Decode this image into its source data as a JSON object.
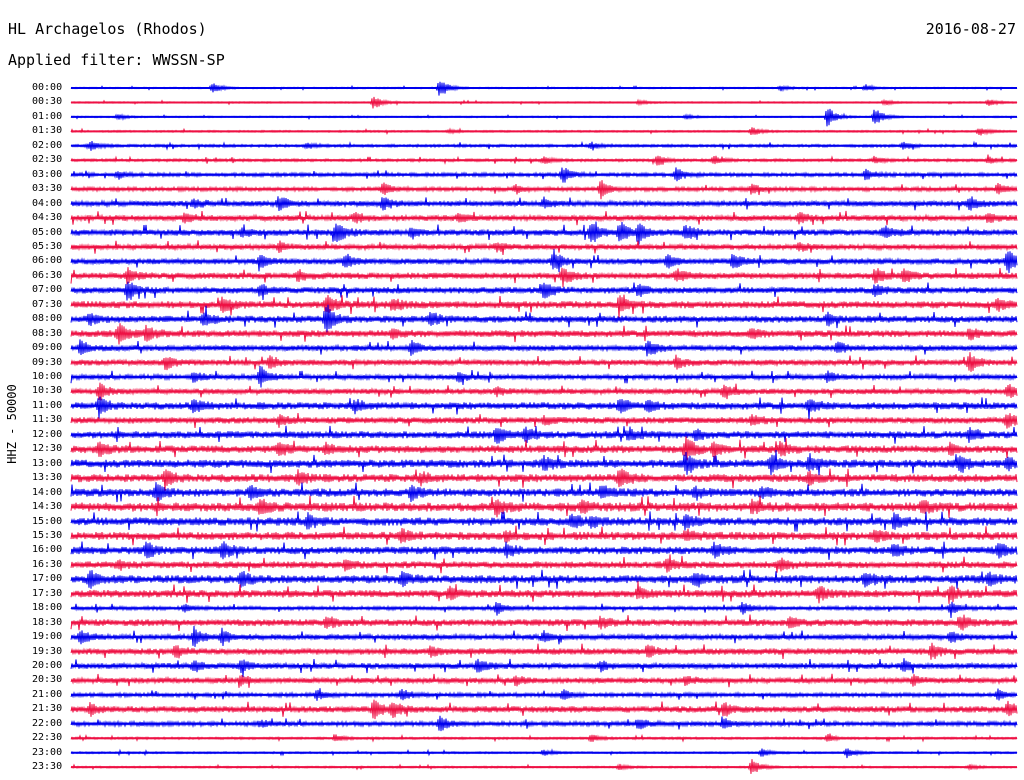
{
  "header": {
    "station": "HL Archagelos (Rhodos)",
    "date": "2016-08-27",
    "filter_label": "Applied filter: WWSSN-SP"
  },
  "vertical_label": "HHZ - 50000",
  "colors": {
    "trace_even": "#0000ee",
    "trace_odd": "#ee1144",
    "background": "#ffffff",
    "text": "#000000"
  },
  "chart_data": {
    "type": "line",
    "row_labels": [
      "00:00",
      "00:30",
      "01:00",
      "01:30",
      "02:00",
      "02:30",
      "03:00",
      "03:30",
      "04:00",
      "04:30",
      "05:00",
      "05:30",
      "06:00",
      "06:30",
      "07:00",
      "07:30",
      "08:00",
      "08:30",
      "09:00",
      "09:30",
      "10:00",
      "10:30",
      "11:00",
      "11:30",
      "12:00",
      "12:30",
      "13:00",
      "13:30",
      "14:00",
      "14:30",
      "15:00",
      "15:30",
      "16:00",
      "16:30",
      "17:00",
      "17:30",
      "18:00",
      "18:30",
      "19:00",
      "19:30",
      "20:00",
      "20:30",
      "21:00",
      "21:30",
      "22:00",
      "22:30",
      "23:00",
      "23:30"
    ],
    "noise_level": [
      0.08,
      0.08,
      0.08,
      0.1,
      0.15,
      0.15,
      0.2,
      0.22,
      0.3,
      0.32,
      0.35,
      0.3,
      0.32,
      0.35,
      0.35,
      0.4,
      0.38,
      0.38,
      0.32,
      0.32,
      0.28,
      0.3,
      0.4,
      0.35,
      0.4,
      0.42,
      0.45,
      0.45,
      0.45,
      0.5,
      0.45,
      0.45,
      0.42,
      0.38,
      0.45,
      0.42,
      0.2,
      0.38,
      0.3,
      0.35,
      0.32,
      0.3,
      0.22,
      0.35,
      0.25,
      0.12,
      0.1,
      0.1
    ],
    "events": [
      [
        [
          0.15,
          0.6
        ],
        [
          0.39,
          1.2
        ],
        [
          0.75,
          0.3
        ],
        [
          0.84,
          0.35
        ]
      ],
      [
        [
          0.32,
          0.8
        ],
        [
          0.6,
          0.25
        ],
        [
          0.86,
          0.3
        ],
        [
          0.97,
          0.4
        ]
      ],
      [
        [
          0.8,
          1.3
        ],
        [
          0.85,
          1.1
        ],
        [
          0.05,
          0.3
        ],
        [
          0.65,
          0.25
        ]
      ],
      [
        [
          0.72,
          0.5
        ],
        [
          0.96,
          0.5
        ],
        [
          0.4,
          0.2
        ]
      ],
      [
        [
          0.02,
          0.6
        ],
        [
          0.25,
          0.3
        ],
        [
          0.55,
          0.4
        ],
        [
          0.88,
          0.4
        ]
      ],
      [
        [
          0.5,
          0.4
        ],
        [
          0.62,
          0.6
        ],
        [
          0.68,
          0.5
        ],
        [
          0.85,
          0.4
        ],
        [
          0.97,
          0.4
        ]
      ],
      [
        [
          0.52,
          1.0
        ],
        [
          0.64,
          0.8
        ],
        [
          0.05,
          0.4
        ],
        [
          0.84,
          0.6
        ]
      ],
      [
        [
          0.33,
          0.7
        ],
        [
          0.56,
          1.0
        ],
        [
          0.47,
          0.5
        ],
        [
          0.72,
          0.6
        ],
        [
          0.98,
          0.6
        ]
      ],
      [
        [
          0.22,
          0.9
        ],
        [
          0.33,
          0.7
        ],
        [
          0.13,
          0.6
        ],
        [
          0.5,
          0.6
        ],
        [
          0.95,
          0.8
        ]
      ],
      [
        [
          0.3,
          0.6
        ],
        [
          0.12,
          0.5
        ],
        [
          0.41,
          0.5
        ],
        [
          0.77,
          0.6
        ],
        [
          0.97,
          0.5
        ]
      ],
      [
        [
          0.28,
          1.5
        ],
        [
          0.55,
          1.3
        ],
        [
          0.58,
          1.2
        ],
        [
          0.6,
          1.1
        ],
        [
          0.65,
          0.9
        ],
        [
          0.36,
          0.6
        ],
        [
          0.18,
          0.5
        ],
        [
          0.86,
          0.7
        ]
      ],
      [
        [
          0.22,
          0.5
        ],
        [
          0.45,
          0.5
        ],
        [
          0.77,
          0.4
        ]
      ],
      [
        [
          0.2,
          0.6
        ],
        [
          0.29,
          0.8
        ],
        [
          0.51,
          1.2
        ],
        [
          0.63,
          0.7
        ],
        [
          0.99,
          1.5
        ],
        [
          0.7,
          0.9
        ]
      ],
      [
        [
          0.06,
          0.8
        ],
        [
          0.24,
          0.7
        ],
        [
          0.52,
          1.1
        ],
        [
          0.64,
          0.7
        ],
        [
          0.85,
          0.9
        ],
        [
          0.88,
          0.7
        ]
      ],
      [
        [
          0.06,
          1.3
        ],
        [
          0.2,
          0.6
        ],
        [
          0.5,
          1.1
        ],
        [
          0.6,
          0.6
        ],
        [
          0.85,
          0.7
        ]
      ],
      [
        [
          0.16,
          0.9
        ],
        [
          0.27,
          1.0
        ],
        [
          0.34,
          0.7
        ],
        [
          0.58,
          0.8
        ],
        [
          0.98,
          0.6
        ]
      ],
      [
        [
          0.14,
          0.9
        ],
        [
          0.27,
          1.6
        ],
        [
          0.38,
          0.8
        ],
        [
          0.02,
          0.6
        ],
        [
          0.8,
          0.6
        ]
      ],
      [
        [
          0.05,
          1.1
        ],
        [
          0.08,
          0.8
        ],
        [
          0.34,
          0.5
        ],
        [
          0.72,
          0.6
        ],
        [
          0.95,
          0.6
        ]
      ],
      [
        [
          0.01,
          0.8
        ],
        [
          0.36,
          0.7
        ],
        [
          0.61,
          1.0
        ],
        [
          0.81,
          0.6
        ]
      ],
      [
        [
          0.1,
          0.8
        ],
        [
          0.21,
          0.7
        ],
        [
          0.64,
          0.7
        ],
        [
          0.95,
          1.0
        ]
      ],
      [
        [
          0.2,
          1.2
        ],
        [
          0.13,
          0.6
        ],
        [
          0.41,
          0.5
        ],
        [
          0.8,
          0.6
        ]
      ],
      [
        [
          0.03,
          0.9
        ],
        [
          0.69,
          0.9
        ],
        [
          0.99,
          0.8
        ],
        [
          0.45,
          0.5
        ]
      ],
      [
        [
          0.03,
          0.9
        ],
        [
          0.13,
          0.8
        ],
        [
          0.3,
          0.7
        ],
        [
          0.58,
          0.8
        ],
        [
          0.61,
          0.6
        ],
        [
          0.78,
          0.8
        ]
      ],
      [
        [
          0.22,
          0.6
        ],
        [
          0.5,
          0.4
        ],
        [
          0.72,
          0.7
        ],
        [
          0.99,
          0.9
        ]
      ],
      [
        [
          0.45,
          0.9
        ],
        [
          0.48,
          0.8
        ],
        [
          0.59,
          0.7
        ],
        [
          0.66,
          0.6
        ],
        [
          0.95,
          0.7
        ]
      ],
      [
        [
          0.03,
          0.8
        ],
        [
          0.22,
          0.7
        ],
        [
          0.27,
          0.6
        ],
        [
          0.65,
          1.3
        ],
        [
          0.68,
          0.9
        ],
        [
          0.75,
          0.7
        ],
        [
          0.93,
          0.6
        ]
      ],
      [
        [
          0.5,
          0.8
        ],
        [
          0.65,
          1.2
        ],
        [
          0.74,
          1.0
        ],
        [
          0.78,
          0.9
        ],
        [
          0.94,
          0.9
        ],
        [
          0.99,
          0.6
        ]
      ],
      [
        [
          0.1,
          0.8
        ],
        [
          0.24,
          0.7
        ],
        [
          0.37,
          0.6
        ],
        [
          0.58,
          1.2
        ],
        [
          0.78,
          0.7
        ]
      ],
      [
        [
          0.09,
          0.8
        ],
        [
          0.19,
          0.7
        ],
        [
          0.36,
          0.8
        ],
        [
          0.56,
          0.7
        ],
        [
          0.66,
          0.6
        ],
        [
          0.73,
          0.6
        ]
      ],
      [
        [
          0.2,
          0.7
        ],
        [
          0.45,
          0.9
        ],
        [
          0.54,
          0.6
        ],
        [
          0.72,
          0.7
        ],
        [
          0.9,
          0.7
        ]
      ],
      [
        [
          0.25,
          0.9
        ],
        [
          0.53,
          0.8
        ],
        [
          0.55,
          0.6
        ],
        [
          0.65,
          0.7
        ],
        [
          0.87,
          0.8
        ]
      ],
      [
        [
          0.35,
          0.7
        ],
        [
          0.46,
          0.5
        ],
        [
          0.65,
          0.6
        ],
        [
          0.85,
          0.6
        ]
      ],
      [
        [
          0.08,
          0.9
        ],
        [
          0.16,
          0.9
        ],
        [
          0.46,
          0.8
        ],
        [
          0.68,
          0.8
        ],
        [
          0.87,
          0.7
        ],
        [
          0.98,
          0.8
        ]
      ],
      [
        [
          0.05,
          0.5
        ],
        [
          0.29,
          0.6
        ],
        [
          0.63,
          0.7
        ],
        [
          0.75,
          0.6
        ]
      ],
      [
        [
          0.02,
          1.0
        ],
        [
          0.18,
          0.9
        ],
        [
          0.35,
          0.8
        ],
        [
          0.66,
          0.8
        ],
        [
          0.84,
          0.8
        ],
        [
          0.97,
          0.7
        ]
      ],
      [
        [
          0.4,
          0.6
        ],
        [
          0.6,
          0.6
        ],
        [
          0.79,
          0.8
        ],
        [
          0.93,
          0.7
        ]
      ],
      [
        [
          0.12,
          0.5
        ],
        [
          0.45,
          0.7
        ],
        [
          0.71,
          0.7
        ],
        [
          0.93,
          0.7
        ]
      ],
      [
        [
          0.27,
          0.7
        ],
        [
          0.56,
          0.6
        ],
        [
          0.76,
          0.6
        ],
        [
          0.94,
          0.9
        ]
      ],
      [
        [
          0.01,
          0.9
        ],
        [
          0.13,
          1.1
        ],
        [
          0.16,
          0.9
        ],
        [
          0.5,
          0.6
        ],
        [
          0.93,
          0.6
        ]
      ],
      [
        [
          0.11,
          0.7
        ],
        [
          0.38,
          0.6
        ],
        [
          0.61,
          0.7
        ],
        [
          0.91,
          0.9
        ]
      ],
      [
        [
          0.13,
          0.6
        ],
        [
          0.18,
          0.7
        ],
        [
          0.43,
          0.8
        ],
        [
          0.56,
          0.5
        ],
        [
          0.88,
          0.6
        ]
      ],
      [
        [
          0.18,
          0.5
        ],
        [
          0.47,
          0.5
        ],
        [
          0.65,
          0.5
        ],
        [
          0.89,
          0.5
        ]
      ],
      [
        [
          0.26,
          0.6
        ],
        [
          0.35,
          0.7
        ],
        [
          0.52,
          0.6
        ],
        [
          0.98,
          0.6
        ]
      ],
      [
        [
          0.02,
          0.6
        ],
        [
          0.32,
          1.1
        ],
        [
          0.34,
          0.9
        ],
        [
          0.69,
          0.9
        ],
        [
          0.99,
          0.7
        ]
      ],
      [
        [
          0.39,
          0.9
        ],
        [
          0.6,
          0.6
        ],
        [
          0.69,
          0.5
        ],
        [
          0.2,
          0.4
        ]
      ],
      [
        [
          0.28,
          0.4
        ],
        [
          0.55,
          0.4
        ],
        [
          0.8,
          0.4
        ]
      ],
      [
        [
          0.73,
          0.5
        ],
        [
          0.82,
          0.7
        ],
        [
          0.5,
          0.3
        ]
      ],
      [
        [
          0.72,
          1.1
        ],
        [
          0.58,
          0.3
        ],
        [
          0.95,
          0.3
        ]
      ]
    ]
  }
}
